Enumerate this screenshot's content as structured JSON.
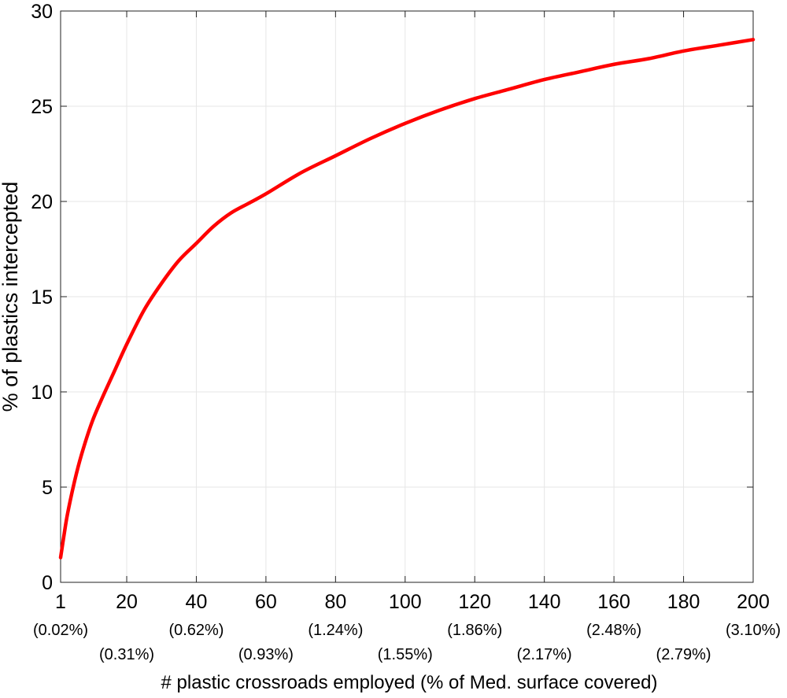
{
  "chart_data": {
    "type": "line",
    "title": "",
    "xlabel": "# plastic crossroads employed (% of Med. surface covered)",
    "ylabel": "% of plastics intercepted",
    "xlim": [
      1,
      200
    ],
    "ylim": [
      0,
      30
    ],
    "grid": true,
    "x_ticks": [
      "1",
      "20",
      "40",
      "60",
      "80",
      "100",
      "120",
      "140",
      "160",
      "180",
      "200"
    ],
    "x_tick_values": [
      1,
      20,
      40,
      60,
      80,
      100,
      120,
      140,
      160,
      180,
      200
    ],
    "x_pct_labels": [
      "(0.02%)",
      "(0.31%)",
      "(0.62%)",
      "(0.93%)",
      "(1.24%)",
      "(1.55%)",
      "(1.86%)",
      "(2.17%)",
      "(2.48%)",
      "(2.79%)",
      "(3.10%)"
    ],
    "y_ticks": [
      "0",
      "5",
      "10",
      "15",
      "20",
      "25",
      "30"
    ],
    "y_tick_values": [
      0,
      5,
      10,
      15,
      20,
      25,
      30
    ],
    "series": [
      {
        "color": "#ff0000",
        "x": [
          1,
          2,
          3,
          5,
          7,
          10,
          13,
          16,
          20,
          25,
          30,
          35,
          40,
          45,
          50,
          55,
          60,
          70,
          80,
          90,
          100,
          110,
          120,
          130,
          140,
          150,
          160,
          170,
          180,
          190,
          200
        ],
        "y": [
          1.3,
          2.5,
          3.6,
          5.3,
          6.7,
          8.4,
          9.7,
          10.9,
          12.5,
          14.3,
          15.7,
          16.9,
          17.8,
          18.7,
          19.4,
          19.9,
          20.4,
          21.5,
          22.4,
          23.3,
          24.1,
          24.8,
          25.4,
          25.9,
          26.4,
          26.8,
          27.2,
          27.5,
          27.9,
          28.2,
          28.5
        ]
      }
    ]
  }
}
